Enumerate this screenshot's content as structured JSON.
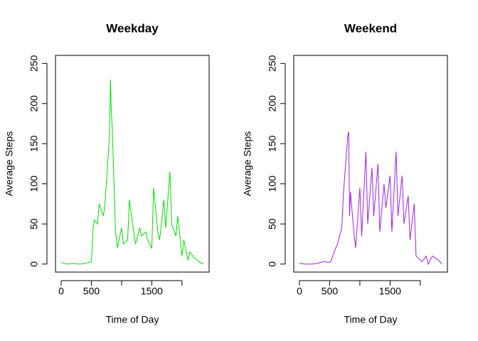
{
  "chart_data": [
    {
      "type": "line",
      "title": "Weekday",
      "x_label": "Time of Day",
      "y_label": "Average Steps",
      "x": [
        0,
        100,
        200,
        300,
        400,
        500,
        530,
        550,
        600,
        630,
        700,
        730,
        800,
        815,
        830,
        845,
        900,
        930,
        1000,
        1030,
        1100,
        1130,
        1200,
        1230,
        1300,
        1330,
        1400,
        1430,
        1500,
        1530,
        1600,
        1630,
        1700,
        1730,
        1800,
        1830,
        1900,
        1930,
        2000,
        2030,
        2100,
        2130,
        2200,
        2300,
        2355
      ],
      "series": [
        {
          "color": "#00e000",
          "values": [
            2,
            0,
            1,
            0,
            1,
            3,
            45,
            55,
            50,
            75,
            60,
            80,
            160,
            230,
            190,
            170,
            40,
            20,
            45,
            25,
            30,
            80,
            40,
            25,
            45,
            35,
            40,
            30,
            20,
            95,
            40,
            30,
            80,
            45,
            115,
            50,
            35,
            60,
            10,
            30,
            5,
            15,
            8,
            2,
            0
          ]
        }
      ],
      "xlim": [
        -94.2,
        2449.2
      ],
      "xticks": [
        0,
        500,
        {
          "value": 1000,
          "label": null
        },
        1500,
        {
          "value": 2000,
          "label": null
        }
      ],
      "ylim": [
        -10,
        260
      ],
      "yticks": [
        0,
        50,
        100,
        150,
        200,
        250
      ]
    },
    {
      "type": "line",
      "title": "Weekend",
      "x_label": "Time of Day",
      "y_label": "Average Steps",
      "x": [
        0,
        100,
        200,
        300,
        400,
        500,
        530,
        550,
        600,
        630,
        700,
        730,
        800,
        815,
        830,
        845,
        900,
        930,
        1000,
        1030,
        1100,
        1130,
        1200,
        1230,
        1300,
        1330,
        1400,
        1430,
        1500,
        1530,
        1600,
        1630,
        1700,
        1730,
        1800,
        1830,
        1900,
        1930,
        2000,
        2030,
        2100,
        2130,
        2200,
        2300,
        2355
      ],
      "series": [
        {
          "color": "#a020f0",
          "values": [
            1,
            0,
            0,
            1,
            3,
            2,
            5,
            10,
            20,
            25,
            45,
            90,
            160,
            165,
            60,
            90,
            40,
            20,
            95,
            35,
            140,
            50,
            120,
            60,
            125,
            40,
            100,
            70,
            110,
            40,
            140,
            60,
            110,
            50,
            85,
            30,
            75,
            10,
            5,
            3,
            10,
            0,
            10,
            5,
            0
          ]
        }
      ],
      "xlim": [
        -94.2,
        2449.2
      ],
      "xticks": [
        0,
        500,
        {
          "value": 1000,
          "label": null
        },
        1500,
        {
          "value": 2000,
          "label": null
        }
      ],
      "ylim": [
        -10,
        260
      ],
      "yticks": [
        0,
        50,
        100,
        150,
        200,
        250
      ]
    }
  ]
}
